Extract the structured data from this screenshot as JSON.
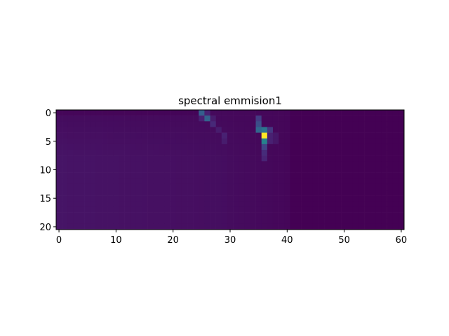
{
  "chart_data": {
    "type": "heatmap",
    "title": "spectral emmision1",
    "xlabel": "",
    "ylabel": "",
    "colormap": "viridis",
    "grid": false,
    "n_cols": 61,
    "n_rows": 21,
    "xlim": [
      -0.5,
      60.5
    ],
    "ylim": [
      20.5,
      -0.5
    ],
    "x_ticks": [
      0,
      10,
      20,
      30,
      40,
      50,
      60
    ],
    "y_ticks": [
      0,
      5,
      10,
      15,
      20
    ],
    "value_range": [
      0,
      1
    ],
    "background_level": 0.02,
    "hot_cells": [
      {
        "col": 25,
        "row": 0,
        "value": 0.38
      },
      {
        "col": 26,
        "row": 0,
        "value": 0.12
      },
      {
        "col": 25,
        "row": 1,
        "value": 0.12
      },
      {
        "col": 26,
        "row": 1,
        "value": 0.4
      },
      {
        "col": 27,
        "row": 1,
        "value": 0.1
      },
      {
        "col": 27,
        "row": 2,
        "value": 0.15
      },
      {
        "col": 28,
        "row": 3,
        "value": 0.1
      },
      {
        "col": 29,
        "row": 4,
        "value": 0.12
      },
      {
        "col": 29,
        "row": 5,
        "value": 0.1
      },
      {
        "col": 35,
        "row": 1,
        "value": 0.22
      },
      {
        "col": 35,
        "row": 2,
        "value": 0.3
      },
      {
        "col": 35,
        "row": 3,
        "value": 0.42
      },
      {
        "col": 36,
        "row": 3,
        "value": 0.48
      },
      {
        "col": 37,
        "row": 3,
        "value": 0.2
      },
      {
        "col": 36,
        "row": 4,
        "value": 1.0
      },
      {
        "col": 37,
        "row": 4,
        "value": 0.12
      },
      {
        "col": 36,
        "row": 5,
        "value": 0.55
      },
      {
        "col": 36,
        "row": 6,
        "value": 0.25
      },
      {
        "col": 36,
        "row": 7,
        "value": 0.16
      },
      {
        "col": 36,
        "row": 8,
        "value": 0.13
      },
      {
        "col": 37,
        "row": 5,
        "value": 0.12
      },
      {
        "col": 38,
        "row": 4,
        "value": 0.08
      },
      {
        "col": 38,
        "row": 5,
        "value": 0.08
      }
    ]
  }
}
